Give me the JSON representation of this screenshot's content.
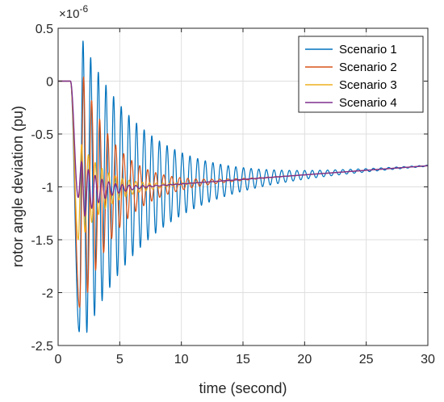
{
  "chart_data": {
    "type": "line",
    "title": "",
    "xlabel": "time (second)",
    "ylabel": "rotor angle deviation (pu)",
    "y_exponent_base": "×10",
    "y_exponent_power": "-6",
    "xlim": [
      0,
      30
    ],
    "ylim": [
      -2.5,
      0.5
    ],
    "x_ticks": [
      0,
      5,
      10,
      15,
      20,
      25,
      30
    ],
    "x_tick_labels": [
      "0",
      "5",
      "10",
      "15",
      "20",
      "25",
      "30"
    ],
    "y_ticks": [
      0.5,
      0,
      -0.5,
      -1,
      -1.5,
      -2,
      -2.5
    ],
    "y_tick_labels": [
      "0.5",
      "0",
      "-0.5",
      "-1",
      "-1.5",
      "-2",
      "-2.5"
    ],
    "grid": true,
    "legend_position": "top-right",
    "fault_time": 1.0,
    "series": [
      {
        "name": "Scenario 1",
        "color": "#0072BD",
        "first_dip": -2.37,
        "first_peak": 0.38,
        "period": 0.62,
        "decay": 0.19,
        "settle_start": -1.05,
        "settle_end": -0.8,
        "width": 1.2
      },
      {
        "name": "Scenario 2",
        "color": "#D95319",
        "first_dip": -2.14,
        "first_peak": 0.04,
        "period": 0.65,
        "decay": 0.36,
        "settle_start": -1.05,
        "settle_end": -0.8,
        "width": 1.2
      },
      {
        "name": "Scenario 3",
        "color": "#EDB120",
        "first_dip": -1.5,
        "first_peak": -0.6,
        "period": 0.55,
        "decay": 0.45,
        "settle_start": -1.05,
        "settle_end": -0.8,
        "width": 1.2
      },
      {
        "name": "Scenario 4",
        "color": "#7E2F8E",
        "first_dip": -1.1,
        "first_peak": -0.76,
        "period": 0.55,
        "decay": 0.6,
        "settle_start": -1.05,
        "settle_end": -0.8,
        "width": 1.4
      }
    ]
  }
}
